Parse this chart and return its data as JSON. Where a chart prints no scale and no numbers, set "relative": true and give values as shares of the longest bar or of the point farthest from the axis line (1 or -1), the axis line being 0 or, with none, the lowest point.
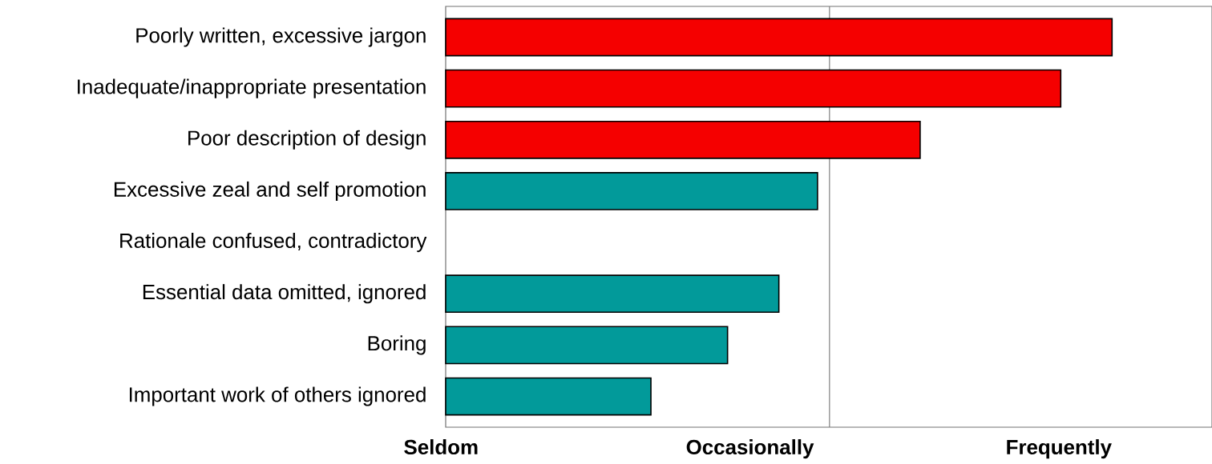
{
  "chart_data": {
    "type": "bar",
    "orientation": "horizontal",
    "relative": true,
    "categories": [
      "Poorly written, excessive jargon",
      "Inadequate/inappropriate presentation",
      "Poor description of design",
      "Excessive zeal and self promotion",
      "Rationale confused, contradictory",
      "Essential data omitted, ignored",
      "Boring",
      "Important work of others ignored"
    ],
    "values": [
      1.0,
      0.923,
      0.712,
      0.558,
      null,
      0.5,
      0.423,
      0.308
    ],
    "colors": [
      "#f50000",
      "#f50000",
      "#f50000",
      "#029a9a",
      "#029a9a",
      "#029a9a",
      "#029a9a",
      "#029a9a"
    ],
    "annotations": [
      "Seldom",
      "Occasionally",
      "Frequently"
    ],
    "ref_lines": [
      {
        "axis": "x",
        "value": 0.576,
        "color": "#7f7f7f"
      }
    ]
  }
}
